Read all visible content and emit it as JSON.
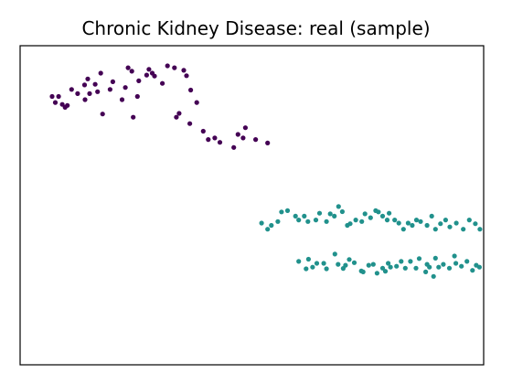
{
  "chart_data": {
    "type": "scatter",
    "title": "Chronic Kidney Disease: real (sample)",
    "xlabel": "",
    "ylabel": "",
    "xlim": [
      0,
      100
    ],
    "ylim": [
      0,
      100
    ],
    "grid": false,
    "axis_ticks": false,
    "colors": {
      "class_0": "#440154",
      "class_1": "#21918c"
    },
    "series": [
      {
        "color_key": "class_0",
        "points": [
          [
            6.9,
            84.1
          ],
          [
            7.6,
            82.2
          ],
          [
            8.3,
            84.1
          ],
          [
            9.1,
            81.6
          ],
          [
            9.7,
            80.7
          ],
          [
            10.2,
            81.3
          ],
          [
            11.1,
            86.3
          ],
          [
            12.4,
            85.0
          ],
          [
            13.9,
            87.7
          ],
          [
            14.0,
            83.1
          ],
          [
            14.6,
            89.6
          ],
          [
            15.0,
            85.0
          ],
          [
            16.2,
            87.9
          ],
          [
            16.7,
            85.6
          ],
          [
            17.4,
            91.4
          ],
          [
            17.8,
            78.6
          ],
          [
            19.4,
            86.3
          ],
          [
            20.0,
            88.7
          ],
          [
            22.0,
            83.1
          ],
          [
            22.7,
            86.9
          ],
          [
            23.3,
            93.1
          ],
          [
            24.1,
            92.0
          ],
          [
            24.4,
            77.6
          ],
          [
            25.3,
            84.1
          ],
          [
            25.6,
            89.0
          ],
          [
            27.3,
            90.8
          ],
          [
            27.8,
            92.6
          ],
          [
            28.5,
            91.4
          ],
          [
            29.0,
            90.5
          ],
          [
            30.7,
            88.2
          ],
          [
            31.8,
            93.7
          ],
          [
            33.3,
            93.1
          ],
          [
            33.7,
            77.6
          ],
          [
            34.3,
            78.8
          ],
          [
            35.3,
            92.3
          ],
          [
            35.9,
            90.6
          ],
          [
            36.6,
            75.6
          ],
          [
            36.8,
            86.1
          ],
          [
            38.1,
            82.2
          ],
          [
            39.5,
            73.2
          ],
          [
            40.6,
            70.6
          ],
          [
            42.0,
            71.1
          ],
          [
            43.1,
            69.7
          ],
          [
            46.1,
            68.1
          ],
          [
            47.0,
            72.2
          ],
          [
            48.1,
            71.1
          ],
          [
            48.6,
            74.3
          ],
          [
            50.8,
            70.6
          ],
          [
            53.4,
            69.5
          ]
        ]
      },
      {
        "color_key": "class_1",
        "points": [
          [
            60.1,
            32.4
          ],
          [
            61.7,
            30.1
          ],
          [
            62.2,
            33.1
          ],
          [
            63.1,
            30.6
          ],
          [
            64.0,
            31.8
          ],
          [
            65.5,
            31.8
          ],
          [
            66.1,
            30.1
          ],
          [
            67.9,
            34.7
          ],
          [
            68.6,
            31.5
          ],
          [
            69.7,
            30.2
          ],
          [
            70.2,
            31.2
          ],
          [
            71.0,
            33.0
          ],
          [
            72.1,
            32.0
          ],
          [
            73.6,
            29.4
          ],
          [
            74.0,
            29.1
          ],
          [
            75.2,
            31.2
          ],
          [
            76.2,
            31.5
          ],
          [
            77.0,
            28.7
          ],
          [
            78.2,
            30.3
          ],
          [
            78.8,
            29.3
          ],
          [
            79.4,
            31.8
          ],
          [
            79.9,
            30.6
          ],
          [
            81.2,
            30.9
          ],
          [
            82.2,
            32.4
          ],
          [
            83.1,
            30.3
          ],
          [
            84.2,
            32.4
          ],
          [
            85.4,
            30.3
          ],
          [
            86.1,
            33.3
          ],
          [
            87.5,
            29.1
          ],
          [
            87.8,
            31.5
          ],
          [
            88.3,
            30.6
          ],
          [
            89.2,
            27.7
          ],
          [
            89.6,
            33.4
          ],
          [
            90.3,
            30.6
          ],
          [
            91.3,
            31.5
          ],
          [
            92.6,
            30.3
          ],
          [
            93.7,
            34.1
          ],
          [
            94.0,
            31.8
          ],
          [
            95.2,
            30.9
          ],
          [
            96.4,
            32.4
          ],
          [
            97.6,
            29.6
          ],
          [
            98.4,
            31.2
          ],
          [
            99.1,
            30.6
          ],
          [
            52.1,
            44.4
          ],
          [
            53.4,
            42.5
          ],
          [
            54.2,
            43.7
          ],
          [
            55.6,
            44.9
          ],
          [
            56.4,
            47.9
          ],
          [
            57.7,
            48.3
          ],
          [
            59.4,
            46.6
          ],
          [
            60.1,
            45.4
          ],
          [
            61.3,
            46.6
          ],
          [
            62.1,
            44.9
          ],
          [
            63.8,
            45.4
          ],
          [
            64.6,
            47.5
          ],
          [
            66.1,
            44.9
          ],
          [
            66.9,
            47.3
          ],
          [
            67.8,
            46.6
          ],
          [
            68.7,
            49.6
          ],
          [
            69.5,
            48.0
          ],
          [
            70.6,
            43.7
          ],
          [
            71.2,
            44.2
          ],
          [
            72.4,
            45.4
          ],
          [
            73.7,
            44.9
          ],
          [
            74.4,
            47.3
          ],
          [
            75.6,
            46.1
          ],
          [
            76.7,
            48.3
          ],
          [
            77.3,
            47.9
          ],
          [
            78.2,
            46.6
          ],
          [
            79.2,
            45.4
          ],
          [
            79.6,
            47.5
          ],
          [
            80.8,
            45.4
          ],
          [
            81.7,
            44.4
          ],
          [
            82.7,
            42.5
          ],
          [
            83.7,
            44.4
          ],
          [
            84.6,
            43.7
          ],
          [
            85.5,
            45.4
          ],
          [
            86.4,
            44.9
          ],
          [
            87.8,
            43.7
          ],
          [
            88.8,
            46.6
          ],
          [
            89.6,
            42.5
          ],
          [
            90.7,
            44.2
          ],
          [
            91.8,
            45.4
          ],
          [
            92.7,
            43.2
          ],
          [
            94.1,
            44.4
          ],
          [
            95.6,
            42.5
          ],
          [
            96.9,
            45.4
          ],
          [
            98.2,
            44.2
          ],
          [
            99.2,
            42.5
          ]
        ]
      }
    ]
  }
}
